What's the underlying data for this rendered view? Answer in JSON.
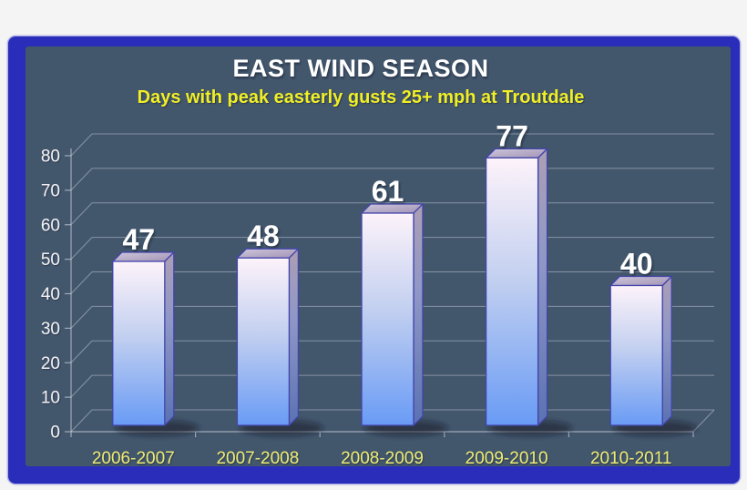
{
  "page": {
    "background": "#F5F4F5"
  },
  "frame": {
    "border_color": "#2A2DB9",
    "outer_edge_color": "#B4B6E4",
    "panel_color": "#42566C"
  },
  "header": {
    "title": "EAST WIND SEASON",
    "subtitle": "Days with peak easterly gusts 25+ mph at Troutdale",
    "title_color": "#FFFFFF",
    "subtitle_color": "#F0EF25"
  },
  "chart_data": {
    "type": "bar",
    "style": "3d-column",
    "title": "EAST WIND SEASON",
    "subtitle": "Days with peak easterly gusts 25+ mph at Troutdale",
    "categories": [
      "2006-2007",
      "2007-2008",
      "2008-2009",
      "2009-2010",
      "2010-2011"
    ],
    "series": [
      {
        "name": "Days with peak easterly gusts 25+ mph",
        "values": [
          47,
          48,
          61,
          77,
          40
        ]
      }
    ],
    "values": [
      47,
      48,
      61,
      77,
      40
    ],
    "data_labels": true,
    "xlabel": "",
    "ylabel": "",
    "ylim": [
      0,
      80
    ],
    "ytick_step": 10,
    "yticks": [
      0,
      10,
      20,
      30,
      40,
      50,
      60,
      70,
      80
    ],
    "grid": true,
    "legend": false,
    "colors": {
      "plot_background": "#42566C",
      "gridline": "#C9CFDA",
      "axis_line": "#C9CFDA",
      "y_label": "#F2F2F2",
      "category_label": "#EAEA72",
      "value_label": "#FFFFFF",
      "bar_front_top": "#FDF3FA",
      "bar_front_mid": "#C3D0F0",
      "bar_front_bottom": "#699BF5",
      "bar_side_top": "#AC9FB4",
      "bar_side_mid": "#8F97C6",
      "bar_side_bottom": "#5A72B2",
      "bar_top_light": "#CEC6DB",
      "bar_top_dark": "#A294B5",
      "bar_outline": "#4345AC",
      "shadow": "#0E1526"
    }
  }
}
